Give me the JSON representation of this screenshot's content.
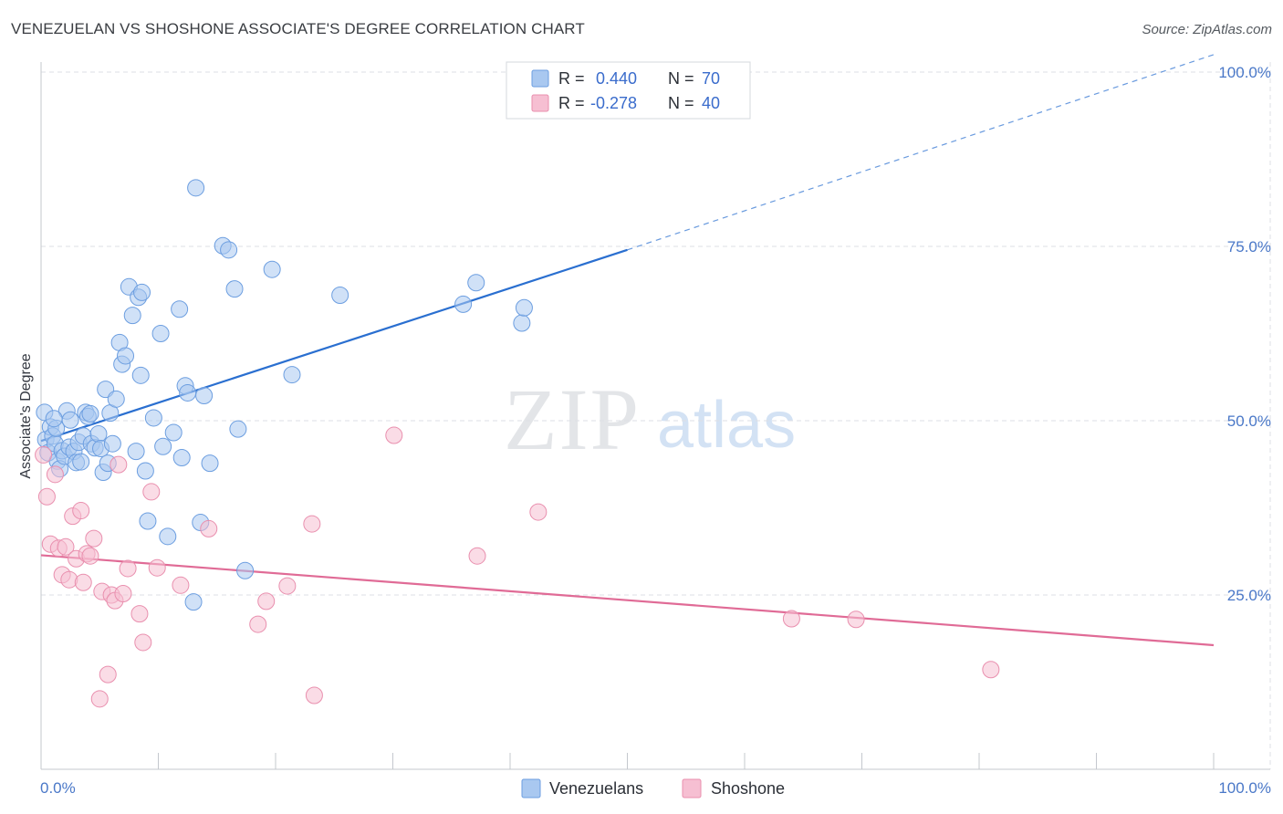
{
  "title": "VENEZUELAN VS SHOSHONE ASSOCIATE'S DEGREE CORRELATION CHART",
  "source": "Source: ZipAtlas.com",
  "colors": {
    "blue_fill": "#a9c8f0",
    "blue_stroke": "#6c9ee0",
    "blue_line": "#2a6fd0",
    "pink_fill": "#f6bfd2",
    "pink_stroke": "#e98fae",
    "pink_line": "#e06b96",
    "grid": "#dcdfe4",
    "tick_text": "#4a78c8"
  },
  "legend": {
    "r_label": "R =",
    "n_label": "N =",
    "blue_r": "0.440",
    "blue_n": "70",
    "pink_r": "-0.278",
    "pink_n": "40"
  },
  "bottom_legend": {
    "blue": "Venezuelans",
    "pink": "Shoshone"
  },
  "watermark": {
    "zip": "ZIP",
    "atlas": "atlas"
  },
  "chart_data": {
    "type": "scatter",
    "title": "VENEZUELAN VS SHOSHONE ASSOCIATE'S DEGREE CORRELATION CHART",
    "xlabel": "",
    "ylabel": "Associate's Degree",
    "xlim": [
      0,
      100
    ],
    "ylim": [
      0,
      100
    ],
    "x_tick_labels": [
      "0.0%",
      "100.0%"
    ],
    "y_ticks": [
      25,
      50,
      75,
      100
    ],
    "y_tick_labels": [
      "25.0%",
      "50.0%",
      "75.0%",
      "100.0%"
    ],
    "grid": true,
    "series": [
      {
        "name": "Venezuelans",
        "r": 0.44,
        "n": 70,
        "trend": {
          "x0": 0,
          "y0": 47.1,
          "x1": 50,
          "y1": 74.5,
          "dashed_to_x": 100,
          "dashed_to_y": 102.5
        },
        "points": [
          [
            0.3,
            51.2
          ],
          [
            0.4,
            47.3
          ],
          [
            0.6,
            45.4
          ],
          [
            0.8,
            49.1
          ],
          [
            1.0,
            47.8
          ],
          [
            1.2,
            46.7
          ],
          [
            1.3,
            48.9
          ],
          [
            1.4,
            44.2
          ],
          [
            1.6,
            43.1
          ],
          [
            1.8,
            45.7
          ],
          [
            2.0,
            44.9
          ],
          [
            2.2,
            51.4
          ],
          [
            2.4,
            46.2
          ],
          [
            2.5,
            50.1
          ],
          [
            2.8,
            45.6
          ],
          [
            3.0,
            44.0
          ],
          [
            3.2,
            46.9
          ],
          [
            3.4,
            44.1
          ],
          [
            3.6,
            47.8
          ],
          [
            3.8,
            51.2
          ],
          [
            4.0,
            50.6
          ],
          [
            4.3,
            46.7
          ],
          [
            4.6,
            46.1
          ],
          [
            4.9,
            48.1
          ],
          [
            5.1,
            46.0
          ],
          [
            5.3,
            42.6
          ],
          [
            5.5,
            54.5
          ],
          [
            5.7,
            43.9
          ],
          [
            5.9,
            51.1
          ],
          [
            6.1,
            46.7
          ],
          [
            6.4,
            53.1
          ],
          [
            6.7,
            61.2
          ],
          [
            6.9,
            58.1
          ],
          [
            7.2,
            59.3
          ],
          [
            7.5,
            69.2
          ],
          [
            7.8,
            65.1
          ],
          [
            8.1,
            45.6
          ],
          [
            8.3,
            67.7
          ],
          [
            8.5,
            56.5
          ],
          [
            8.6,
            68.4
          ],
          [
            8.9,
            42.8
          ],
          [
            9.1,
            35.6
          ],
          [
            9.6,
            50.4
          ],
          [
            10.2,
            62.5
          ],
          [
            10.4,
            46.3
          ],
          [
            10.8,
            33.4
          ],
          [
            11.3,
            48.3
          ],
          [
            11.8,
            66.0
          ],
          [
            12.0,
            44.7
          ],
          [
            12.3,
            55.0
          ],
          [
            12.5,
            54.0
          ],
          [
            13.0,
            24.0
          ],
          [
            13.2,
            83.4
          ],
          [
            13.6,
            35.4
          ],
          [
            13.9,
            53.6
          ],
          [
            14.4,
            43.9
          ],
          [
            15.5,
            75.1
          ],
          [
            16.0,
            74.5
          ],
          [
            16.5,
            68.9
          ],
          [
            16.8,
            48.8
          ],
          [
            17.4,
            28.5
          ],
          [
            19.7,
            71.7
          ],
          [
            21.4,
            56.6
          ],
          [
            25.5,
            68.0
          ],
          [
            36.0,
            66.7
          ],
          [
            37.1,
            69.8
          ],
          [
            41.0,
            64.0
          ],
          [
            41.2,
            66.2
          ],
          [
            1.1,
            50.3
          ],
          [
            4.2,
            51.0
          ]
        ]
      },
      {
        "name": "Shoshone",
        "r": -0.278,
        "n": 40,
        "trend": {
          "x0": 0,
          "y0": 30.7,
          "x1": 100,
          "y1": 17.8
        },
        "points": [
          [
            0.2,
            45.1
          ],
          [
            0.5,
            39.1
          ],
          [
            0.8,
            32.3
          ],
          [
            1.2,
            42.3
          ],
          [
            1.5,
            31.7
          ],
          [
            1.8,
            27.9
          ],
          [
            2.1,
            31.9
          ],
          [
            2.4,
            27.2
          ],
          [
            2.7,
            36.3
          ],
          [
            3.0,
            30.2
          ],
          [
            3.4,
            37.1
          ],
          [
            3.6,
            26.8
          ],
          [
            3.9,
            30.9
          ],
          [
            4.2,
            30.6
          ],
          [
            4.5,
            33.1
          ],
          [
            5.0,
            10.1
          ],
          [
            5.2,
            25.5
          ],
          [
            5.7,
            13.6
          ],
          [
            6.0,
            25.0
          ],
          [
            6.3,
            24.2
          ],
          [
            6.6,
            43.7
          ],
          [
            7.0,
            25.2
          ],
          [
            7.4,
            28.8
          ],
          [
            8.4,
            22.3
          ],
          [
            8.7,
            18.2
          ],
          [
            9.4,
            39.8
          ],
          [
            9.9,
            28.9
          ],
          [
            11.9,
            26.4
          ],
          [
            14.3,
            34.5
          ],
          [
            18.5,
            20.8
          ],
          [
            19.2,
            24.1
          ],
          [
            21.0,
            26.3
          ],
          [
            23.1,
            35.2
          ],
          [
            23.3,
            10.6
          ],
          [
            30.1,
            47.9
          ],
          [
            37.2,
            30.6
          ],
          [
            42.4,
            36.9
          ],
          [
            64.0,
            21.6
          ],
          [
            69.5,
            21.5
          ],
          [
            81.0,
            14.3
          ]
        ]
      }
    ]
  }
}
